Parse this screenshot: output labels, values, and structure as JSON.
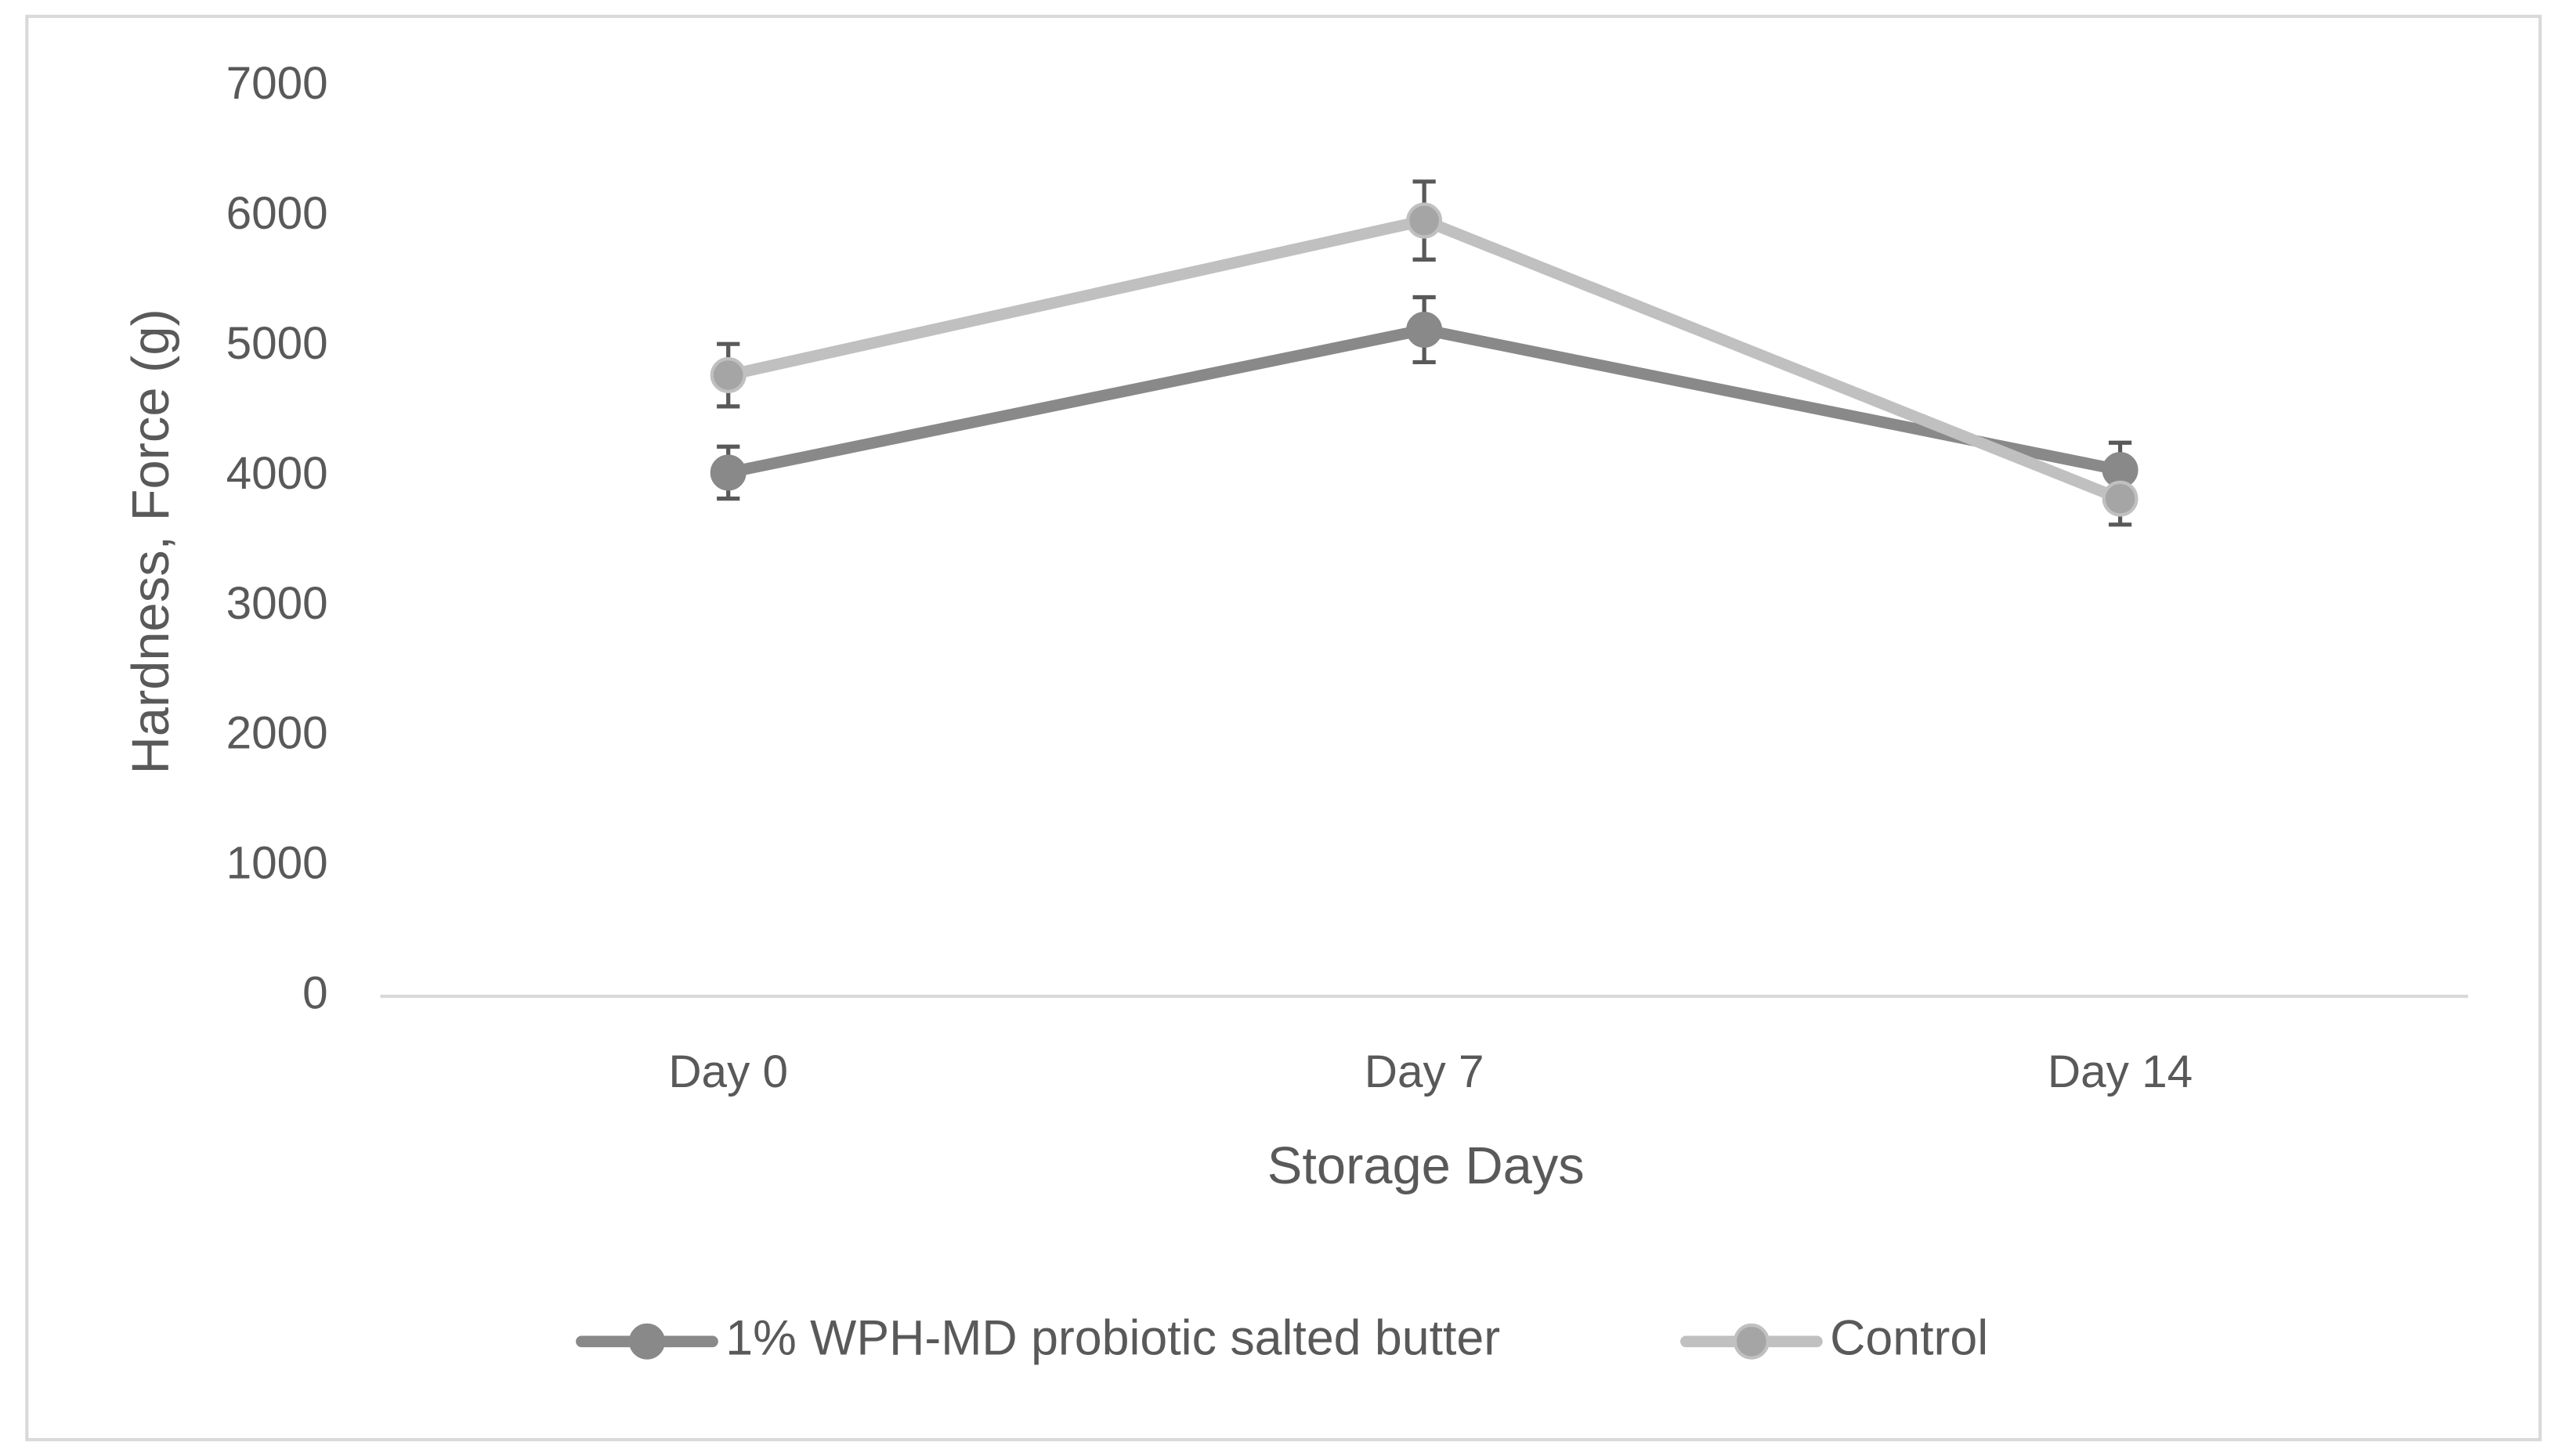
{
  "chart_data": {
    "type": "line",
    "x_label": "Storage Days",
    "y_label": "Hardness, Force (g)",
    "categories": [
      "Day 0",
      "Day 7",
      "Day 14"
    ],
    "series": [
      {
        "name": "1% WPH-MD probiotic salted butter",
        "color": "#898989",
        "values": [
          4030,
          5130,
          4050
        ],
        "errors": [
          200,
          250,
          210
        ]
      },
      {
        "name": "Control",
        "color": "#c0c0c0",
        "marker_color": "#a5a5a5",
        "values": [
          4780,
          5970,
          3830
        ],
        "errors": [
          240,
          300,
          200
        ]
      }
    ],
    "error_color": "#595959",
    "ylim": [
      0,
      7000
    ],
    "yticks": [
      0,
      1000,
      2000,
      3000,
      4000,
      5000,
      6000,
      7000
    ],
    "legend": "bottom"
  }
}
